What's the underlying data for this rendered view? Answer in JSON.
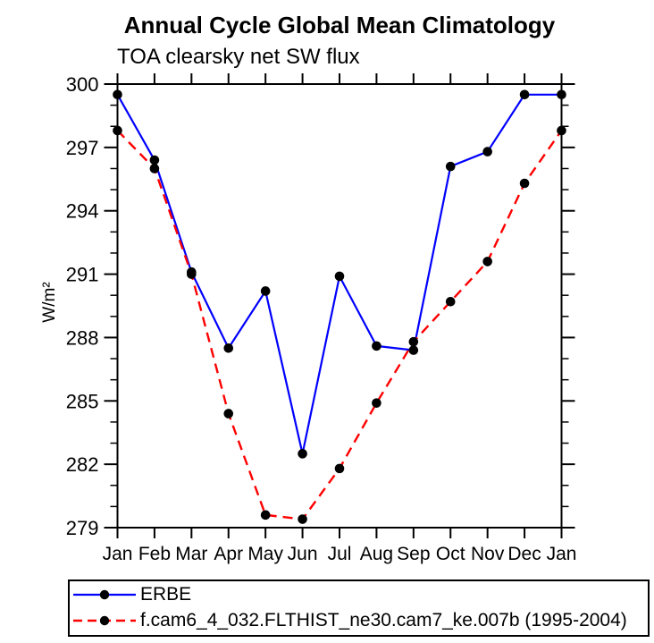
{
  "chart_data": {
    "type": "line",
    "title": "Annual Cycle Global Mean Climatology",
    "subtitle": "TOA clearsky net SW flux",
    "ylabel": "W/m²",
    "xlabel": "",
    "categories": [
      "Jan",
      "Feb",
      "Mar",
      "Apr",
      "May",
      "Jun",
      "Jul",
      "Aug",
      "Sep",
      "Oct",
      "Nov",
      "Dec",
      "Jan"
    ],
    "series": [
      {
        "name": "ERBE",
        "line_color": "#0000ff",
        "line_style": "solid",
        "marker": "filled-circle",
        "marker_color": "#000000",
        "values": [
          299.5,
          296.4,
          291.1,
          287.5,
          290.2,
          282.5,
          290.9,
          287.6,
          287.4,
          296.1,
          296.8,
          299.5,
          299.5
        ]
      },
      {
        "name": "f.cam6_4_032.FLTHIST_ne30.cam7_ke.007b (1995-2004)",
        "line_color": "#ff0000",
        "line_style": "dashed",
        "marker": "filled-circle",
        "marker_color": "#000000",
        "values": [
          297.8,
          296.0,
          291.0,
          284.4,
          279.6,
          279.4,
          281.8,
          284.9,
          287.8,
          289.7,
          291.6,
          295.3,
          297.8
        ]
      }
    ],
    "ylim": [
      279,
      300
    ],
    "ytick_major_step": 3,
    "ytick_minor_step": 1,
    "grid": false,
    "axis_color": "#000000",
    "legend_position": "bottom"
  }
}
